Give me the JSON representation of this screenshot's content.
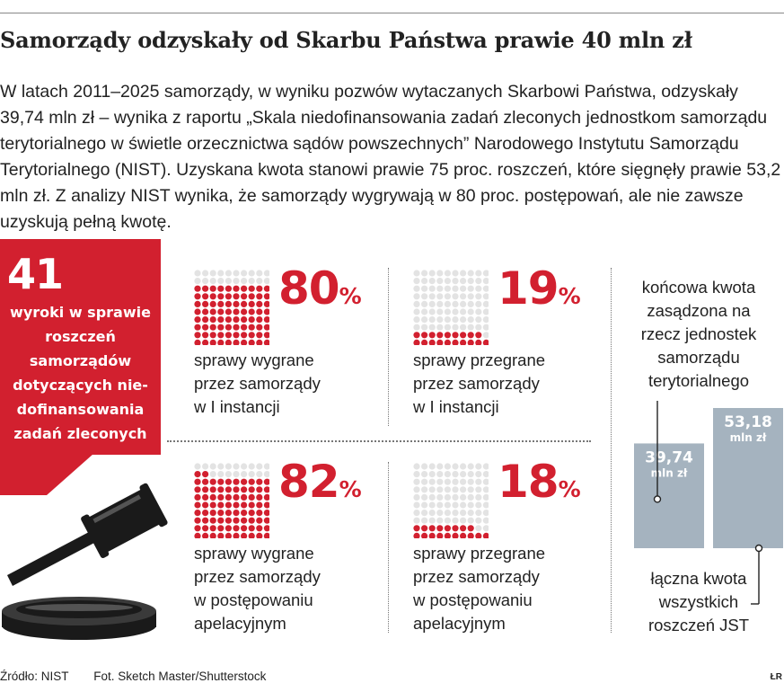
{
  "header": {
    "title": "Samorządy odzyskały od Skarbu Państwa prawie 40 mln zł",
    "lead": "W latach 2011–2025 samorządy, w wyniku pozwów wytaczanych Skarbowi Państwa, odzyskały 39,74 mln zł – wynika z raportu „Skala niedofinansowania zadań zleconych jednostkom samorządu terytorialnego w świetle orzecznictwa sądów powszechnych” Narodowego Instytutu Samorządu Terytorialnego (NIST). Uzyskana kwota stanowi prawie 75 proc. roszczeń, które sięgnęły prawie 53,2 mln zł. Z analizy NIST wynika, że samorządy wygrywają w 80 proc. postępowań, ale nie zawsze uzyskują pełną kwotę."
  },
  "highlight": {
    "number": "41",
    "text_lines": [
      "wyroki w sprawie",
      "roszczeń",
      "samorządów",
      "dotyczących nie-",
      "dofinansowania",
      "zadań zleconych"
    ],
    "icon": "gavel-icon"
  },
  "colors": {
    "accent": "#d2202f",
    "dot_empty": "#e3e3e3",
    "bar": "#a5b3bf"
  },
  "chart_data": [
    {
      "type": "waffle",
      "grid": [
        10,
        10
      ],
      "items": [
        {
          "value": 80,
          "value_label": "80",
          "unit": "%",
          "desc": [
            "sprawy wygrane",
            "przez samorządy",
            "w I instancji"
          ]
        },
        {
          "value": 19,
          "value_label": "19",
          "unit": "%",
          "desc": [
            "sprawy przegrane",
            "przez samorządy",
            "w I instancji"
          ]
        },
        {
          "value": 82,
          "value_label": "82",
          "unit": "%",
          "desc": [
            "sprawy wygrane",
            "przez samorządy",
            "w postępowaniu",
            "apelacyjnym"
          ]
        },
        {
          "value": 18,
          "value_label": "18",
          "unit": "%",
          "desc": [
            "sprawy przegrane",
            "przez samorządy",
            "w postępowaniu",
            "apelacyjnym"
          ]
        }
      ]
    },
    {
      "type": "bar",
      "unit": "mln zł",
      "bars": [
        {
          "value": 39.74,
          "value_label": "39,74",
          "unit_label": "mln zł",
          "label": [
            "końcowa kwota",
            "zasądzona na",
            "rzecz jednostek",
            "samorządu",
            "terytorialnego"
          ]
        },
        {
          "value": 53.18,
          "value_label": "53,18",
          "unit_label": "mln zł",
          "label": [
            "łączna kwota",
            "wszystkich",
            "roszczeń JST"
          ]
        }
      ]
    }
  ],
  "footer": {
    "source": "Źródło: NIST",
    "photo": "Fot. Sketch Master/Shutterstock",
    "signature": "ŁR"
  }
}
